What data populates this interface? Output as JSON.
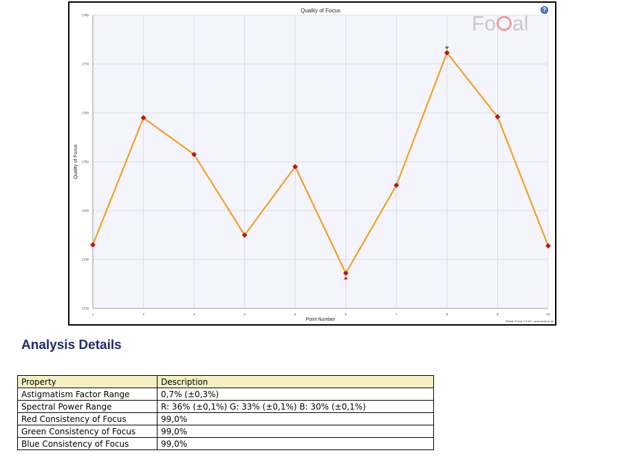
{
  "chart_data": {
    "type": "line",
    "title": "Quality of Focus",
    "xlabel": "Point Number",
    "ylabel": "Quality of Focus",
    "x": [
      1,
      2,
      3,
      4,
      5,
      6,
      7,
      8,
      9,
      10
    ],
    "series": [
      {
        "values": [
          1733,
          1759,
          1751.5,
          1735,
          1749,
          1727.2,
          1745.2,
          1772.3,
          1759.2,
          1732.8
        ]
      }
    ],
    "xlim": [
      1,
      10
    ],
    "ylim": [
      1720,
      1780
    ],
    "yticks": [
      1720,
      1730,
      1740,
      1750,
      1760,
      1770,
      1780
    ],
    "xticks": [
      1,
      2,
      3,
      4,
      5,
      6,
      7,
      8,
      9,
      10
    ],
    "grid": true,
    "max_point": {
      "x": 8,
      "value": 1772.3
    },
    "min_point": {
      "x": 6,
      "value": 1727.2
    },
    "colors": {
      "line": "#f0a020",
      "marker": "#cc1111",
      "max_marker": "#1a8a2a",
      "min_marker": "#cc1111",
      "plot_bg": "#f4f4fc",
      "grid": "#d6d6e4"
    }
  },
  "logo": {
    "text_left": "Fo",
    "text_right": "al"
  },
  "help_icon": {
    "label": "?",
    "icon": "question-icon"
  },
  "credit": "Reikan FoCal 2.5.0/4 - www.focal.co.uk",
  "analysis": {
    "heading": "Analysis Details",
    "columns": [
      "Property",
      "Description"
    ],
    "rows": [
      {
        "property": "Astigmatism Factor Range",
        "description": "0,7% (±0,3%)"
      },
      {
        "property": "Spectral Power Range",
        "description": "R: 36% (±0,1%) G: 33% (±0,1%) B: 30% (±0,1%)"
      },
      {
        "property": "Red Consistency of Focus",
        "description": "99,0%"
      },
      {
        "property": "Green Consistency of Focus",
        "description": "99,0%"
      },
      {
        "property": "Blue Consistency of Focus",
        "description": "99,0%"
      }
    ]
  }
}
